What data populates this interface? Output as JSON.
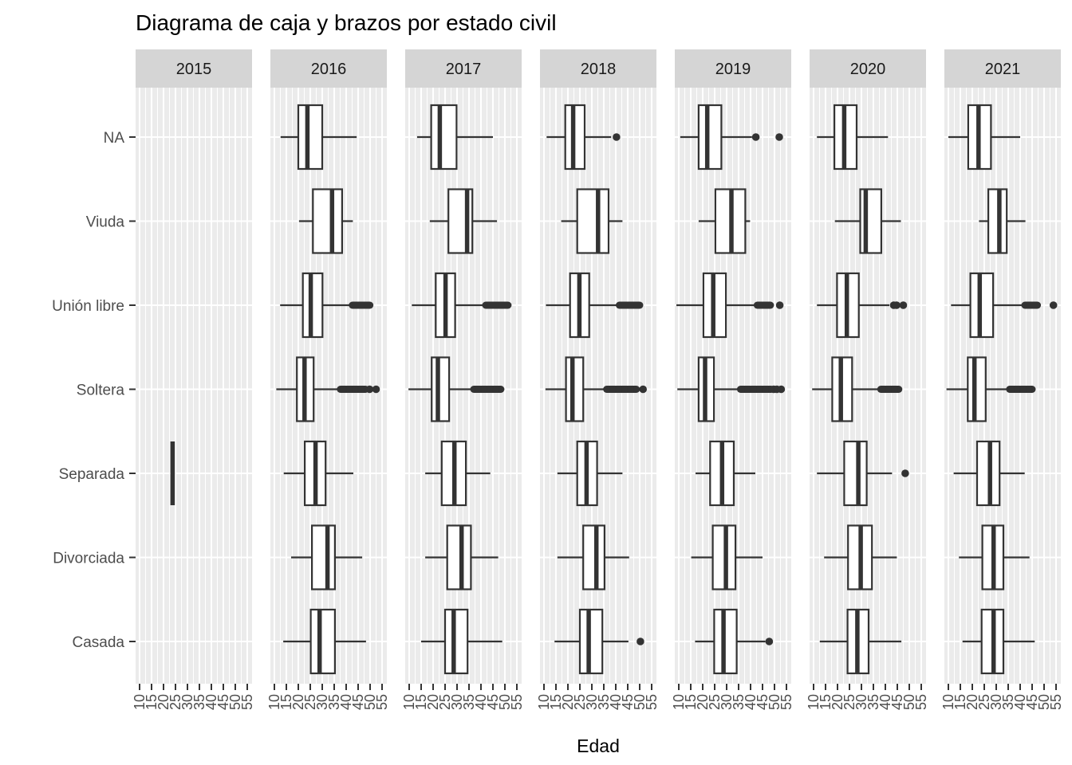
{
  "colors": {
    "panel_bg": "#EBEBEB",
    "strip_bg": "#D5D5D5",
    "strip_text": "#1A1A1A",
    "grid": "#FFFFFF",
    "line": "#333333",
    "fill": "#FFFFFF",
    "tick": "#333333",
    "axis_text": "#4D4D4D",
    "title_text": "#000000"
  },
  "chart_data": {
    "type": "boxplot",
    "title": "Diagrama de caja y brazos por estado civil",
    "xlabel": "Edad",
    "ylabel": "",
    "legend": "none",
    "grid": "white major+minor vertical gridlines, white major horizontal gridlines on grey panels",
    "x_breaks": [
      10,
      15,
      20,
      25,
      30,
      35,
      40,
      45,
      50,
      55
    ],
    "x_minor_breaks": [
      12.5,
      17.5,
      22.5,
      27.5,
      32.5,
      37.5,
      42.5,
      47.5,
      52.5
    ],
    "x_range": [
      8.3,
      57
    ],
    "categories_top_to_bottom": [
      "NA",
      "Viuda",
      "Unión libre",
      "Soltera",
      "Separada",
      "Divorciada",
      "Casada"
    ],
    "facets": [
      {
        "label": "2015",
        "boxes": [
          {
            "cat": "Separada",
            "value": 23.8
          }
        ]
      },
      {
        "label": "2016",
        "boxes": [
          {
            "cat": "NA",
            "lo": 12.6,
            "q1": 20.0,
            "med": 23.8,
            "q3": 30.0,
            "hi": 44.4
          },
          {
            "cat": "Viuda",
            "lo": 20.3,
            "q1": 26.1,
            "med": 34.1,
            "q3": 38.3,
            "hi": 42.8
          },
          {
            "cat": "Unión libre",
            "lo": 12.4,
            "q1": 21.9,
            "med": 25.2,
            "q3": 30.1,
            "hi": 41.7,
            "outlier_runs": [
              [
                42.6,
                49.9
              ]
            ]
          },
          {
            "cat": "Soltera",
            "lo": 10.8,
            "q1": 19.4,
            "med": 22.6,
            "q3": 26.4,
            "hi": 36.7,
            "outlier_runs": [
              [
                37.6,
                48.1
              ]
            ],
            "outliers": [
              49.8,
              52.5
            ]
          },
          {
            "cat": "Separada",
            "lo": 13.9,
            "q1": 22.7,
            "med": 27.2,
            "q3": 31.4,
            "hi": 43.0
          },
          {
            "cat": "Divorciada",
            "lo": 17.0,
            "q1": 25.7,
            "med": 32.2,
            "q3": 35.3,
            "hi": 46.7
          },
          {
            "cat": "Casada",
            "lo": 13.7,
            "q1": 25.2,
            "med": 28.9,
            "q3": 35.3,
            "hi": 48.3
          }
        ]
      },
      {
        "label": "2017",
        "boxes": [
          {
            "cat": "NA",
            "lo": 13.3,
            "q1": 19.2,
            "med": 22.8,
            "q3": 29.8,
            "hi": 45.0
          },
          {
            "cat": "Viuda",
            "lo": 18.6,
            "q1": 26.4,
            "med": 34.2,
            "q3": 36.4,
            "hi": 46.7
          },
          {
            "cat": "Unión libre",
            "lo": 11.1,
            "q1": 21.1,
            "med": 25.2,
            "q3": 29.2,
            "hi": 41.1,
            "outlier_runs": [
              [
                42.0,
                51.3
              ]
            ]
          },
          {
            "cat": "Soltera",
            "lo": 9.7,
            "q1": 19.4,
            "med": 22.0,
            "q3": 26.7,
            "hi": 36.1,
            "outlier_runs": [
              [
                37.0,
                48.3
              ]
            ]
          },
          {
            "cat": "Separada",
            "lo": 16.7,
            "q1": 23.6,
            "med": 28.9,
            "q3": 33.7,
            "hi": 43.9
          },
          {
            "cat": "Divorciada",
            "lo": 16.7,
            "q1": 25.9,
            "med": 31.9,
            "q3": 35.8,
            "hi": 47.2
          },
          {
            "cat": "Casada",
            "lo": 15.0,
            "q1": 25.0,
            "med": 28.6,
            "q3": 34.4,
            "hi": 48.9
          }
        ]
      },
      {
        "label": "2018",
        "boxes": [
          {
            "cat": "NA",
            "lo": 11.1,
            "q1": 18.9,
            "med": 22.2,
            "q3": 27.0,
            "hi": 38.1,
            "outliers": [
              40.3
            ]
          },
          {
            "cat": "Viuda",
            "lo": 17.2,
            "q1": 23.9,
            "med": 32.6,
            "q3": 37.0,
            "hi": 42.8
          },
          {
            "cat": "Unión libre",
            "lo": 10.8,
            "q1": 20.9,
            "med": 24.8,
            "q3": 28.9,
            "hi": 40.6,
            "outlier_runs": [
              [
                41.5,
                50.0
              ]
            ]
          },
          {
            "cat": "Soltera",
            "lo": 10.6,
            "q1": 19.2,
            "med": 21.9,
            "q3": 26.4,
            "hi": 35.6,
            "outlier_runs": [
              [
                36.2,
                48.6
              ]
            ],
            "outliers": [
              51.4
            ]
          },
          {
            "cat": "Separada",
            "lo": 15.6,
            "q1": 23.9,
            "med": 27.8,
            "q3": 32.2,
            "hi": 42.8
          },
          {
            "cat": "Divorciada",
            "lo": 15.6,
            "q1": 26.4,
            "med": 31.9,
            "q3": 35.3,
            "hi": 45.6
          },
          {
            "cat": "Casada",
            "lo": 14.4,
            "q1": 25.0,
            "med": 28.7,
            "q3": 34.4,
            "hi": 45.3,
            "outliers": [
              50.3
            ]
          }
        ]
      },
      {
        "label": "2019",
        "boxes": [
          {
            "cat": "NA",
            "lo": 10.6,
            "q1": 18.3,
            "med": 21.9,
            "q3": 27.8,
            "hi": 40.6,
            "outliers": [
              42.2,
              52.0
            ]
          },
          {
            "cat": "Viuda",
            "lo": 18.3,
            "q1": 25.3,
            "med": 32.0,
            "q3": 37.8,
            "hi": 39.8
          },
          {
            "cat": "Unión libre",
            "lo": 9.0,
            "q1": 20.3,
            "med": 24.4,
            "q3": 29.7,
            "hi": 41.7,
            "outlier_runs": [
              [
                42.8,
                48.3
              ]
            ],
            "outliers": [
              52.2
            ]
          },
          {
            "cat": "Soltera",
            "lo": 9.4,
            "q1": 18.3,
            "med": 21.0,
            "q3": 24.7,
            "hi": 35.2,
            "outlier_runs": [
              [
                35.8,
                48.6
              ]
            ],
            "outliers": [
              49.7,
              51.0,
              52.8
            ]
          },
          {
            "cat": "Separada",
            "lo": 17.0,
            "q1": 23.1,
            "med": 28.1,
            "q3": 33.0,
            "hi": 42.0
          },
          {
            "cat": "Divorciada",
            "lo": 15.2,
            "q1": 24.2,
            "med": 29.7,
            "q3": 33.7,
            "hi": 45.0
          },
          {
            "cat": "Casada",
            "lo": 16.8,
            "q1": 24.8,
            "med": 28.7,
            "q3": 34.2,
            "hi": 46.2,
            "outliers": [
              47.8
            ]
          }
        ]
      },
      {
        "label": "2020",
        "boxes": [
          {
            "cat": "NA",
            "lo": 11.4,
            "q1": 18.7,
            "med": 22.8,
            "q3": 28.0,
            "hi": 41.1
          },
          {
            "cat": "Viuda",
            "lo": 18.9,
            "q1": 29.5,
            "med": 31.8,
            "q3": 38.3,
            "hi": 46.5
          },
          {
            "cat": "Unión libre",
            "lo": 11.4,
            "q1": 19.8,
            "med": 23.9,
            "q3": 28.9,
            "hi": 41.7,
            "outliers": [
              43.5,
              44.7,
              47.5
            ]
          },
          {
            "cat": "Soltera",
            "lo": 9.4,
            "q1": 17.8,
            "med": 21.4,
            "q3": 26.1,
            "hi": 36.7,
            "outlier_runs": [
              [
                38.1,
                45.6
              ]
            ]
          },
          {
            "cat": "Separada",
            "lo": 11.4,
            "q1": 22.8,
            "med": 28.7,
            "q3": 32.2,
            "hi": 42.8,
            "outliers": [
              48.3
            ]
          },
          {
            "cat": "Divorciada",
            "lo": 14.4,
            "q1": 24.4,
            "med": 29.7,
            "q3": 34.4,
            "hi": 44.8
          },
          {
            "cat": "Casada",
            "lo": 12.6,
            "q1": 24.2,
            "med": 28.3,
            "q3": 33.0,
            "hi": 46.7
          }
        ]
      },
      {
        "label": "2021",
        "boxes": [
          {
            "cat": "NA",
            "lo": 10.0,
            "q1": 18.3,
            "med": 22.6,
            "q3": 27.8,
            "hi": 40.0
          },
          {
            "cat": "Viuda",
            "lo": 22.8,
            "q1": 26.7,
            "med": 31.3,
            "q3": 34.4,
            "hi": 42.2
          },
          {
            "cat": "Unión libre",
            "lo": 11.1,
            "q1": 19.2,
            "med": 23.1,
            "q3": 28.7,
            "hi": 41.1,
            "outlier_runs": [
              [
                42.0,
                47.2
              ]
            ],
            "outliers": [
              53.9
            ]
          },
          {
            "cat": "Soltera",
            "lo": 9.2,
            "q1": 18.1,
            "med": 20.9,
            "q3": 25.6,
            "hi": 35.0,
            "outlier_runs": [
              [
                35.6,
                45.0
              ]
            ]
          },
          {
            "cat": "Separada",
            "lo": 12.2,
            "q1": 22.0,
            "med": 27.4,
            "q3": 31.4,
            "hi": 41.9
          },
          {
            "cat": "Divorciada",
            "lo": 14.4,
            "q1": 24.2,
            "med": 28.9,
            "q3": 33.0,
            "hi": 43.9
          },
          {
            "cat": "Casada",
            "lo": 15.9,
            "q1": 23.9,
            "med": 28.9,
            "q3": 33.0,
            "hi": 46.1
          }
        ]
      }
    ]
  }
}
